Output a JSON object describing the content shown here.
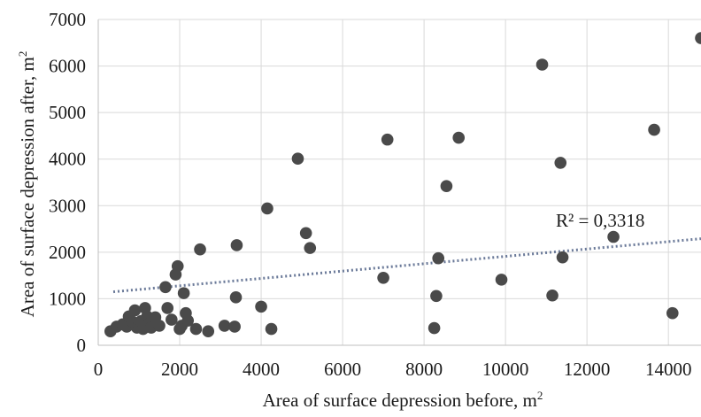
{
  "chart_data": {
    "type": "scatter",
    "xlabel": "Area of surface depression before, m",
    "xlabel_sup": "2",
    "ylabel": "Area of surface depression after, m",
    "ylabel_sup": "2",
    "xlim": [
      0,
      14800
    ],
    "ylim": [
      0,
      7000
    ],
    "xticks": [
      "0",
      "2000",
      "4000",
      "6000",
      "8000",
      "10000",
      "12000",
      "14000"
    ],
    "xtick_values": [
      0,
      2000,
      4000,
      6000,
      8000,
      10000,
      12000,
      14000
    ],
    "yticks": [
      "0",
      "1000",
      "2000",
      "3000",
      "4000",
      "5000",
      "6000",
      "7000"
    ],
    "ytick_values": [
      0,
      1000,
      2000,
      3000,
      4000,
      5000,
      6000,
      7000
    ],
    "grid": true,
    "trendline": {
      "type": "linear",
      "x": [
        0,
        14800
      ],
      "y": [
        1130,
        2290
      ],
      "style": "dotted",
      "color": "#6b7a99"
    },
    "annotation": {
      "text": "R² = 0,3318",
      "x": 12300,
      "y": 2650
    },
    "marker_color": "#4a4a4a",
    "points": [
      [
        300,
        300
      ],
      [
        450,
        400
      ],
      [
        600,
        450
      ],
      [
        700,
        400
      ],
      [
        750,
        620
      ],
      [
        850,
        500
      ],
      [
        900,
        750
      ],
      [
        950,
        380
      ],
      [
        1000,
        420
      ],
      [
        1050,
        520
      ],
      [
        1100,
        350
      ],
      [
        1150,
        800
      ],
      [
        1200,
        620
      ],
      [
        1250,
        460
      ],
      [
        1300,
        380
      ],
      [
        1400,
        600
      ],
      [
        1500,
        420
      ],
      [
        1650,
        1250
      ],
      [
        1700,
        800
      ],
      [
        1800,
        550
      ],
      [
        1900,
        1520
      ],
      [
        1950,
        1700
      ],
      [
        2000,
        350
      ],
      [
        2050,
        420
      ],
      [
        2100,
        1120
      ],
      [
        2150,
        690
      ],
      [
        2200,
        530
      ],
      [
        2400,
        350
      ],
      [
        2500,
        2060
      ],
      [
        2700,
        300
      ],
      [
        3100,
        420
      ],
      [
        3350,
        400
      ],
      [
        3380,
        1030
      ],
      [
        3400,
        2150
      ],
      [
        4000,
        830
      ],
      [
        4150,
        2940
      ],
      [
        4250,
        350
      ],
      [
        4900,
        4010
      ],
      [
        5100,
        2410
      ],
      [
        5200,
        2090
      ],
      [
        7000,
        1450
      ],
      [
        7100,
        4420
      ],
      [
        8250,
        370
      ],
      [
        8300,
        1060
      ],
      [
        8350,
        1870
      ],
      [
        8550,
        3420
      ],
      [
        8850,
        4460
      ],
      [
        9900,
        1410
      ],
      [
        10900,
        6030
      ],
      [
        11150,
        1070
      ],
      [
        11350,
        3920
      ],
      [
        11400,
        1890
      ],
      [
        12650,
        2330
      ],
      [
        13650,
        4630
      ],
      [
        14100,
        690
      ],
      [
        14800,
        6600
      ]
    ]
  }
}
